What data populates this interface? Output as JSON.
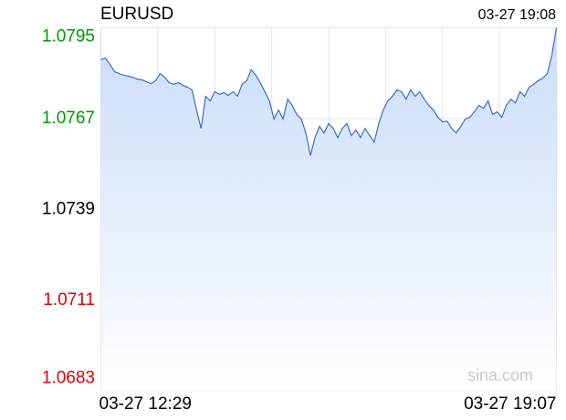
{
  "chart_data": {
    "type": "area",
    "title": "EURUSD",
    "timestamp": "03-27 19:08",
    "watermark": "sina.com",
    "color": "#3a6ec4",
    "fill_color": "#c9dcf8",
    "x": [
      "03-27 12:29",
      null,
      null,
      null,
      null,
      null,
      null,
      null,
      null,
      null,
      null,
      null,
      null,
      null,
      null,
      null,
      null,
      null,
      null,
      null,
      null,
      null,
      null,
      null,
      null,
      null,
      null,
      null,
      null,
      null,
      null,
      null,
      null,
      null,
      null,
      null,
      null,
      null,
      null,
      null,
      null,
      null,
      null,
      null,
      null,
      null,
      null,
      null,
      null,
      null,
      null,
      null,
      null,
      null,
      null,
      null,
      null,
      null,
      null,
      null,
      null,
      null,
      null,
      null,
      null,
      null,
      null,
      null,
      null,
      null,
      null,
      null,
      null,
      null,
      null,
      null,
      null,
      null,
      null,
      null,
      null,
      null,
      null,
      null,
      null,
      null,
      null,
      null,
      null,
      null,
      null,
      null,
      null,
      null,
      null,
      null,
      null,
      null,
      null,
      null,
      "03-27 19:07"
    ],
    "values": [
      1.07852,
      1.07857,
      1.07837,
      1.07815,
      1.07809,
      1.07804,
      1.07801,
      1.07798,
      1.07792,
      1.0779,
      1.07784,
      1.07778,
      1.07787,
      1.07809,
      1.07798,
      1.07781,
      1.07776,
      1.07781,
      1.07773,
      1.07767,
      1.07759,
      1.07697,
      1.0764,
      1.07739,
      1.07725,
      1.07753,
      1.07745,
      1.0775,
      1.07742,
      1.07753,
      1.07739,
      1.07776,
      1.07787,
      1.07821,
      1.07804,
      1.07781,
      1.07753,
      1.07725,
      1.07669,
      1.07697,
      1.07669,
      1.0773,
      1.07711,
      1.07683,
      1.07669,
      1.07626,
      1.07556,
      1.07612,
      1.07646,
      1.07626,
      1.07655,
      1.0764,
      1.07612,
      1.0764,
      1.07655,
      1.07618,
      1.07635,
      1.07612,
      1.0764,
      1.07618,
      1.07598,
      1.07655,
      1.07697,
      1.07725,
      1.07739,
      1.07759,
      1.07753,
      1.0773,
      1.07759,
      1.07739,
      1.07753,
      1.0773,
      1.07711,
      1.07697,
      1.07674,
      1.0766,
      1.07663,
      1.0764,
      1.07626,
      1.07646,
      1.07669,
      1.07674,
      1.07691,
      1.07711,
      1.07702,
      1.07725,
      1.07683,
      1.07691,
      1.07674,
      1.07711,
      1.0773,
      1.07719,
      1.07753,
      1.07739,
      1.07767,
      1.07776,
      1.07787,
      1.07795,
      1.07809,
      1.07866,
      1.0795
    ],
    "ylim": [
      1.0683,
      1.0795
    ],
    "yticks": [
      1.0683,
      1.0711,
      1.0739,
      1.0767,
      1.0795
    ],
    "ytick_colors": [
      "#e00000",
      "#e00000",
      "#000000",
      "#009900",
      "#009900"
    ],
    "grid": true
  }
}
